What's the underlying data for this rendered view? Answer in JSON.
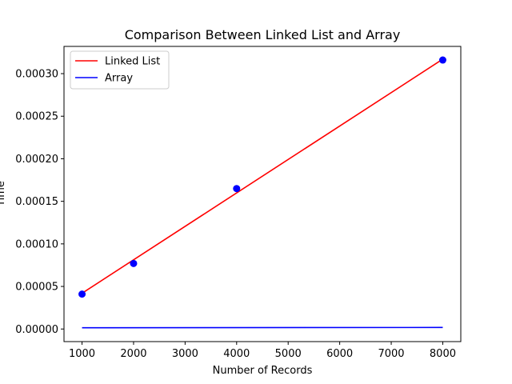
{
  "chart_data": {
    "type": "line",
    "title": "Comparison Between Linked List and Array",
    "xlabel": "Number of Records",
    "ylabel": "Time",
    "xlim": [
      650,
      8350
    ],
    "ylim": [
      -1.48e-05,
      0.000332
    ],
    "xticks": [
      1000,
      2000,
      3000,
      4000,
      5000,
      6000,
      7000,
      8000
    ],
    "xtick_labels": [
      "1000",
      "2000",
      "3000",
      "4000",
      "5000",
      "6000",
      "7000",
      "8000"
    ],
    "yticks": [
      0,
      5e-05,
      0.0001,
      0.00015,
      0.0002,
      0.00025,
      0.0003
    ],
    "ytick_labels": [
      "0.00000",
      "0.00005",
      "0.00010",
      "0.00015",
      "0.00020",
      "0.00025",
      "0.00030"
    ],
    "grid": false,
    "legend_position": "top-left",
    "series": [
      {
        "name": "Linked List",
        "kind": "line",
        "color": "#ff0000",
        "x": [
          1000,
          8000
        ],
        "y": [
          4.2e-05,
          0.000317
        ]
      },
      {
        "name": "Array",
        "kind": "line",
        "color": "#0000ff",
        "x": [
          1000,
          8000
        ],
        "y": [
          1.5e-06,
          1.8e-06
        ]
      }
    ],
    "points": {
      "kind": "scatter",
      "color": "#0000ff",
      "x": [
        1000,
        2000,
        4000,
        8000
      ],
      "y": [
        4.1e-05,
        7.7e-05,
        0.000165,
        0.000316
      ]
    }
  }
}
